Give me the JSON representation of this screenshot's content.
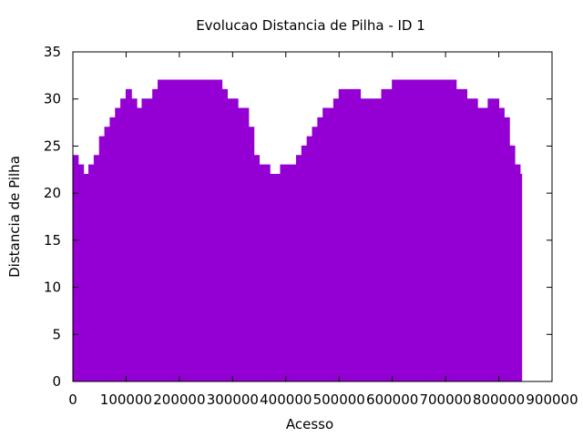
{
  "chart_data": {
    "type": "area",
    "title": "Evolucao Distancia de Pilha - ID 1",
    "xlabel": "Acesso",
    "ylabel": "Distancia de Pilha",
    "xlim": [
      0,
      900000
    ],
    "ylim": [
      0,
      35
    ],
    "x_ticks": [
      0,
      100000,
      200000,
      300000,
      400000,
      500000,
      600000,
      700000,
      800000,
      900000
    ],
    "x_tick_labels": [
      "0",
      "100000",
      "200000",
      "300000",
      "400000",
      "500000",
      "600000",
      "700000",
      "800000",
      "900000"
    ],
    "y_ticks": [
      0,
      5,
      10,
      15,
      20,
      25,
      30,
      35
    ],
    "y_tick_labels": [
      "0",
      "5",
      "10",
      "15",
      "20",
      "25",
      "30",
      "35"
    ],
    "grid": false,
    "legend": "none",
    "color": "#9400d3",
    "series": [
      {
        "x": [
          0,
          10000,
          20000,
          30000,
          40000,
          50000,
          60000,
          70000,
          80000,
          90000,
          100000,
          110000,
          120000,
          130000,
          140000,
          150000,
          160000,
          170000,
          180000,
          200000,
          220000,
          240000,
          260000,
          280000,
          290000,
          300000,
          310000,
          320000,
          330000,
          340000,
          350000,
          360000,
          370000,
          380000,
          390000,
          400000,
          410000,
          420000,
          430000,
          440000,
          450000,
          460000,
          470000,
          480000,
          490000,
          500000,
          520000,
          540000,
          560000,
          580000,
          600000,
          620000,
          640000,
          660000,
          680000,
          700000,
          720000,
          740000,
          760000,
          780000,
          790000,
          800000,
          810000,
          820000,
          830000,
          840000,
          843000
        ],
        "y": [
          24,
          23,
          22,
          23,
          24,
          26,
          27,
          28,
          29,
          30,
          31,
          30,
          29,
          30,
          30,
          31,
          32,
          32,
          32,
          32,
          32,
          32,
          32,
          31,
          30,
          30,
          29,
          29,
          27,
          24,
          23,
          23,
          22,
          22,
          23,
          23,
          23,
          24,
          25,
          26,
          27,
          28,
          29,
          29,
          30,
          31,
          31,
          30,
          30,
          31,
          32,
          32,
          32,
          32,
          32,
          32,
          31,
          30,
          29,
          30,
          30,
          29,
          28,
          25,
          23,
          22,
          19
        ]
      }
    ]
  }
}
